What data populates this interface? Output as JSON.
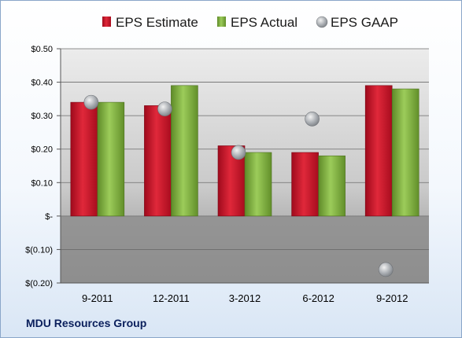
{
  "footer_label": "MDU Resources Group",
  "colors": {
    "estimate": "#d0102a",
    "actual": "#7aac3a",
    "gaap": "#b0b4b8",
    "plot_top": "#e6e6e6",
    "plot_bottom": "#8f8f8f"
  },
  "chart_data": {
    "type": "bar",
    "title": "",
    "xlabel": "",
    "ylabel": "",
    "categories": [
      "9-2011",
      "12-2011",
      "3-2012",
      "6-2012",
      "9-2012"
    ],
    "series": [
      {
        "name": "EPS Estimate",
        "kind": "bar",
        "values": [
          0.34,
          0.33,
          0.21,
          0.19,
          0.39
        ]
      },
      {
        "name": "EPS Actual",
        "kind": "bar",
        "values": [
          0.34,
          0.39,
          0.19,
          0.18,
          0.38
        ]
      },
      {
        "name": "EPS GAAP",
        "kind": "scatter",
        "values": [
          0.34,
          0.32,
          0.19,
          0.29,
          -0.16
        ]
      }
    ],
    "ylim": [
      -0.2,
      0.5
    ],
    "yticks": [
      0.5,
      0.4,
      0.3,
      0.2,
      0.1,
      0,
      -0.1,
      -0.2
    ],
    "ytick_labels": [
      "$0.50",
      "$0.40",
      "$0.30",
      "$0.20",
      "$0.10",
      "$-",
      "$(0.10)",
      "$(0.20)"
    ],
    "grid": true,
    "legend_position": "top"
  }
}
